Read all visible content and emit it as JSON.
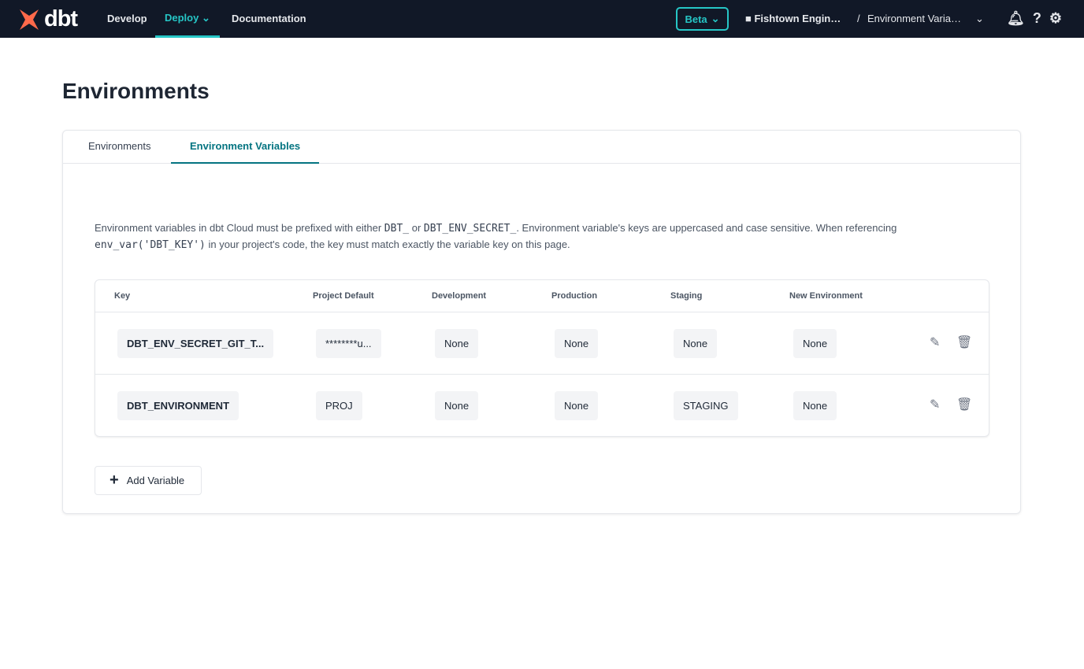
{
  "nav": {
    "logo": "dbt",
    "links": [
      "Develop",
      "Deploy",
      "Documentation"
    ],
    "beta": "Beta",
    "account": "Fishtown Engin…",
    "separator": "/",
    "project": "Environment Varia…"
  },
  "page": {
    "title": "Environments"
  },
  "tabs": [
    "Environments",
    "Environment Variables"
  ],
  "description": {
    "p1": "Environment variables in dbt Cloud must be prefixed with either ",
    "code1": "DBT_",
    "p2": " or ",
    "code2": "DBT_ENV_SECRET_",
    "p3": ". Environment variable's keys are uppercased and case sensitive. When referencing ",
    "code3": "env_var('DBT_KEY')",
    "p4": " in your project's code, the key must match exactly the variable key on this page."
  },
  "table": {
    "headers": [
      "Key",
      "Project Default",
      "Development",
      "Production",
      "Staging",
      "New Environment"
    ],
    "rows": [
      [
        "DBT_ENV_SECRET_GIT_T...",
        "********u...",
        "None",
        "None",
        "None",
        "None"
      ],
      [
        "DBT_ENVIRONMENT",
        "PROJ",
        "None",
        "None",
        "STAGING",
        "None"
      ]
    ]
  },
  "add_button": "Add Variable",
  "colors": {
    "nav_bg": "#111827",
    "accent": "#26c6c6",
    "tab_active": "#047481",
    "logo": "#ff694a"
  }
}
